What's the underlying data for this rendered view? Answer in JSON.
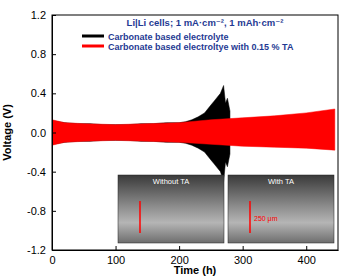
{
  "chart_data": {
    "type": "area",
    "annotation": "Li|Li cells; 1 mA·cm⁻², 1 mAh·cm⁻²",
    "x_label": "Time (h)",
    "y_label": "Voltage (V)",
    "xlim": [
      0,
      450
    ],
    "xticks": [
      0,
      100,
      200,
      300,
      400
    ],
    "ylim": [
      -1.2,
      1.2
    ],
    "yticks": [
      -1.2,
      -0.8,
      -0.4,
      {
        "value": 0,
        "label": "0.0"
      },
      0.4,
      0.8,
      1.2
    ],
    "legend": "upper left",
    "series": [
      {
        "name": "Carbonate based electrolyte",
        "color": "#000000",
        "x": [
          0,
          20,
          40,
          60,
          80,
          100,
          120,
          140,
          160,
          180,
          200,
          210,
          220,
          230,
          240,
          245,
          250,
          255,
          260,
          265,
          270,
          273,
          276,
          280
        ],
        "upper": [
          0.12,
          0.1,
          0.09,
          0.09,
          0.08,
          0.08,
          0.08,
          0.09,
          0.09,
          0.1,
          0.1,
          0.11,
          0.13,
          0.16,
          0.2,
          0.24,
          0.28,
          0.32,
          0.36,
          0.4,
          0.48,
          0.3,
          0.35,
          0.22
        ],
        "lower": [
          -0.12,
          -0.1,
          -0.09,
          -0.09,
          -0.08,
          -0.08,
          -0.08,
          -0.09,
          -0.09,
          -0.1,
          -0.1,
          -0.11,
          -0.13,
          -0.16,
          -0.2,
          -0.24,
          -0.28,
          -0.32,
          -0.36,
          -0.4,
          -0.5,
          -0.3,
          -0.35,
          -0.22
        ]
      },
      {
        "name": "Carbonate based electroltye with 0.15 % TA",
        "color": "#ff0000",
        "x": [
          0,
          20,
          50,
          100,
          150,
          200,
          250,
          300,
          350,
          400,
          445
        ],
        "upper": [
          0.13,
          0.1,
          0.09,
          0.08,
          0.09,
          0.1,
          0.13,
          0.15,
          0.17,
          0.2,
          0.24
        ],
        "lower": [
          -0.13,
          -0.1,
          -0.09,
          -0.08,
          -0.09,
          -0.1,
          -0.12,
          -0.14,
          -0.15,
          -0.16,
          -0.18
        ]
      }
    ],
    "inset": {
      "labels": [
        "Without TA",
        "With TA"
      ],
      "scale_label": "250 μm"
    }
  }
}
